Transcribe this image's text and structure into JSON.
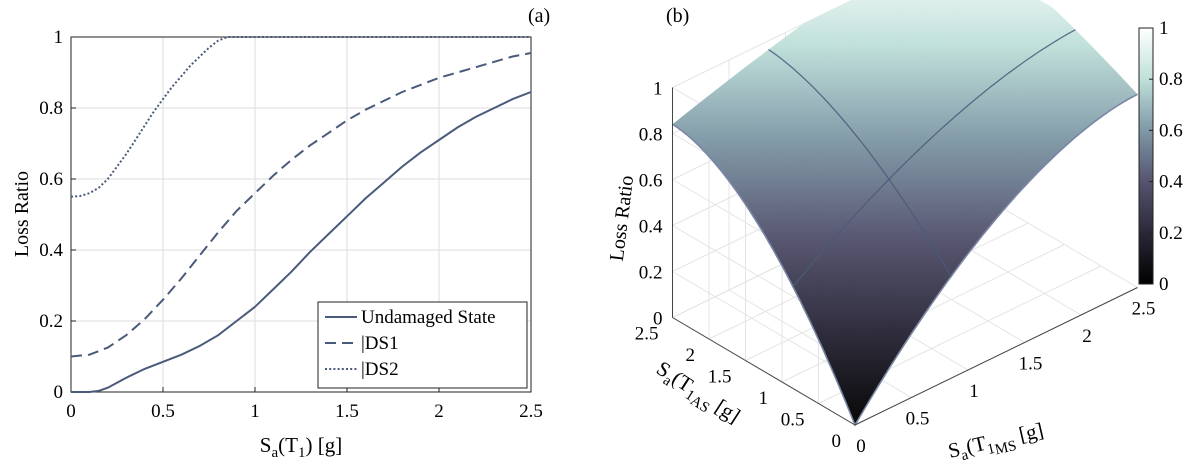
{
  "panel_a": {
    "panel_label": "(a)",
    "ylabel": "Loss Ratio",
    "xlabel_base": "S",
    "xlabel_sub": "a",
    "xlabel_mid": "(T",
    "xlabel_sub2": "1",
    "xlabel_tail": ") [g]"
  },
  "panel_b": {
    "panel_label": "(b)",
    "zlabel": "Loss Ratio",
    "xlabel_base": "S",
    "xlabel_sub": "a",
    "xlabel_mid": "(T",
    "xlabel_sub2": "1",
    "xlabel_sub3": "MS",
    "xlabel_tail": " [g]",
    "ylabel_base": "S",
    "ylabel_sub": "a",
    "ylabel_mid": "(T",
    "ylabel_sub2": "1",
    "ylabel_sub3": "AS",
    "ylabel_tail": " [g]"
  },
  "colors": {
    "line": "#4a5a7a",
    "grid": "#dedede",
    "axis": "#222222",
    "surface_low": "#000000",
    "surface_mid": "#4e4a6a",
    "surface_high": "#bfe0da",
    "surface_top": "#ffffff"
  },
  "chart_data": [
    {
      "type": "line",
      "x_ticks": [
        "0",
        "0.5",
        "1",
        "1.5",
        "2",
        "2.5"
      ],
      "y_ticks": [
        "0",
        "0.2",
        "0.4",
        "0.6",
        "0.8",
        "1"
      ],
      "xlim": [
        0,
        2.5
      ],
      "ylim": [
        0,
        1
      ],
      "grid": true,
      "legend_position": "bottom-right",
      "series": [
        {
          "name": "Undamaged State",
          "style": "solid",
          "x": [
            0,
            0.1,
            0.15,
            0.2,
            0.3,
            0.4,
            0.5,
            0.6,
            0.7,
            0.8,
            0.9,
            1.0,
            1.1,
            1.2,
            1.3,
            1.4,
            1.5,
            1.6,
            1.7,
            1.8,
            1.9,
            2.0,
            2.1,
            2.2,
            2.3,
            2.4,
            2.5
          ],
          "y": [
            0,
            0.0,
            0.003,
            0.012,
            0.04,
            0.065,
            0.085,
            0.105,
            0.13,
            0.16,
            0.2,
            0.24,
            0.29,
            0.34,
            0.395,
            0.445,
            0.495,
            0.545,
            0.59,
            0.635,
            0.675,
            0.71,
            0.745,
            0.775,
            0.8,
            0.825,
            0.845
          ]
        },
        {
          "name": "|DS1",
          "style": "dashed",
          "x": [
            0,
            0.1,
            0.2,
            0.3,
            0.4,
            0.5,
            0.6,
            0.7,
            0.8,
            0.9,
            1.0,
            1.1,
            1.2,
            1.3,
            1.4,
            1.5,
            1.6,
            1.7,
            1.8,
            1.9,
            2.0,
            2.1,
            2.2,
            2.3,
            2.4,
            2.5
          ],
          "y": [
            0.1,
            0.105,
            0.125,
            0.16,
            0.205,
            0.26,
            0.32,
            0.385,
            0.45,
            0.51,
            0.56,
            0.61,
            0.655,
            0.695,
            0.73,
            0.765,
            0.795,
            0.82,
            0.845,
            0.865,
            0.885,
            0.9,
            0.915,
            0.93,
            0.945,
            0.955
          ]
        },
        {
          "name": "|DS2",
          "style": "dotted",
          "x": [
            0,
            0.05,
            0.1,
            0.15,
            0.2,
            0.25,
            0.3,
            0.35,
            0.4,
            0.45,
            0.5,
            0.55,
            0.6,
            0.65,
            0.7,
            0.75,
            0.8,
            0.85,
            0.9,
            1.0,
            1.5,
            2.0,
            2.5
          ],
          "y": [
            0.55,
            0.552,
            0.56,
            0.575,
            0.6,
            0.635,
            0.67,
            0.71,
            0.75,
            0.79,
            0.825,
            0.86,
            0.89,
            0.92,
            0.945,
            0.97,
            0.99,
            1.0,
            1.0,
            1.0,
            1.0,
            1.0,
            1.0
          ]
        }
      ]
    },
    {
      "type": "surface",
      "x_ticks": [
        "0",
        "0.5",
        "1",
        "1.5",
        "2",
        "2.5"
      ],
      "y_ticks": [
        "0",
        "0.5",
        "1",
        "1.5",
        "2",
        "2.5"
      ],
      "z_ticks": [
        "0",
        "0.2",
        "0.4",
        "0.6",
        "0.8",
        "1"
      ],
      "colorbar_ticks": [
        "0",
        "0.2",
        "0.4",
        "0.6",
        "0.8",
        "1"
      ],
      "xlim": [
        0,
        2.5
      ],
      "ylim": [
        0,
        2.5
      ],
      "zlim": [
        0,
        1
      ],
      "colorbar_range": [
        0,
        1
      ],
      "grid": true,
      "corner_values": {
        "origin": 0.0,
        "max_ms_only": 0.84,
        "max_as_only": 0.84,
        "max_both": 1.0
      }
    }
  ]
}
